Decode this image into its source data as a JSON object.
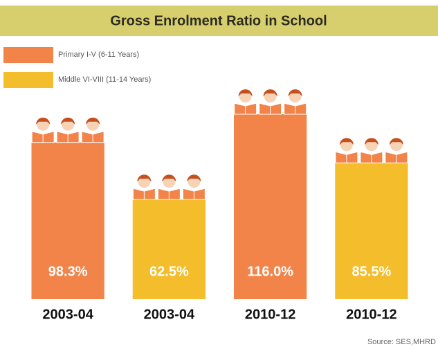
{
  "chart_data": {
    "type": "bar",
    "title": "Gross Enrolment Ratio in School",
    "categories": [
      "2003-04",
      "2003-04",
      "2010-12",
      "2010-12"
    ],
    "series": [
      {
        "name": "Primary I-V (6-11 Years)",
        "color": "#f2844a",
        "values": [
          98.3,
          null,
          116.0,
          null
        ],
        "value_labels": [
          "98.3%",
          null,
          "116.0%",
          null
        ]
      },
      {
        "name": "Middle VI-VIII (11-14 Years)",
        "color": "#f3bd2c",
        "values": [
          null,
          62.5,
          null,
          85.5
        ],
        "value_labels": [
          null,
          "62.5%",
          null,
          "85.5%"
        ]
      }
    ],
    "source": "Source: SES,MHRD"
  }
}
